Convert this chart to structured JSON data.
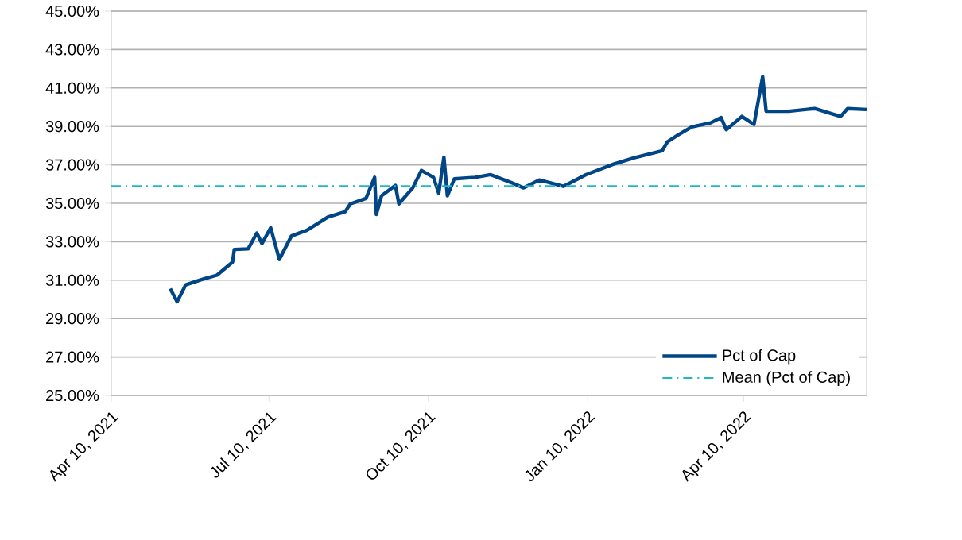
{
  "chart_data": {
    "type": "line",
    "xlim": [
      "2021-04-10",
      "2022-06-20"
    ],
    "ylim": [
      25,
      45
    ],
    "xticks": [
      {
        "value": "2021-04-10",
        "label": "Apr 10, 2021"
      },
      {
        "value": "2021-07-10",
        "label": "Jul 10, 2021"
      },
      {
        "value": "2021-10-10",
        "label": "Oct 10, 2021"
      },
      {
        "value": "2022-01-10",
        "label": "Jan 10, 2022"
      },
      {
        "value": "2022-04-10",
        "label": "Apr 10, 2022"
      }
    ],
    "yticks": [
      {
        "value": 25,
        "label": "25.00%"
      },
      {
        "value": 27,
        "label": "27.00%"
      },
      {
        "value": 29,
        "label": "29.00%"
      },
      {
        "value": 31,
        "label": "31.00%"
      },
      {
        "value": 33,
        "label": "33.00%"
      },
      {
        "value": 35,
        "label": "35.00%"
      },
      {
        "value": 37,
        "label": "37.00%"
      },
      {
        "value": 39,
        "label": "39.00%"
      },
      {
        "value": 41,
        "label": "41.00%"
      },
      {
        "value": 43,
        "label": "43.00%"
      },
      {
        "value": 45,
        "label": "45.00%"
      }
    ],
    "grid": "y",
    "legend": "bottom right",
    "marker": "none",
    "line_style": "solid",
    "x": [
      "2021-05-14",
      "2021-05-18",
      "2021-05-23",
      "2021-06-01",
      "2021-06-10",
      "2021-06-19",
      "2021-06-20",
      "2021-06-28",
      "2021-07-03",
      "2021-07-06",
      "2021-07-11",
      "2021-07-16",
      "2021-07-23",
      "2021-08-01",
      "2021-08-13",
      "2021-08-23",
      "2021-08-26",
      "2021-09-04",
      "2021-09-09",
      "2021-09-10",
      "2021-09-13",
      "2021-09-21",
      "2021-09-23",
      "2021-10-01",
      "2021-10-06",
      "2021-10-13",
      "2021-10-16",
      "2021-10-19",
      "2021-10-21",
      "2021-10-25",
      "2021-11-06",
      "2021-11-15",
      "2021-11-27",
      "2021-12-04",
      "2021-12-13",
      "2021-12-27",
      "2022-01-09",
      "2022-01-25",
      "2022-02-06",
      "2022-02-22",
      "2022-02-25",
      "2022-03-03",
      "2022-03-11",
      "2022-03-22",
      "2022-03-28",
      "2022-03-31",
      "2022-04-09",
      "2022-04-16",
      "2022-04-21",
      "2022-04-23",
      "2022-05-06",
      "2022-05-21",
      "2022-06-05",
      "2022-06-09",
      "2022-06-20"
    ],
    "series": [
      {
        "name": "Pct of Cap",
        "color": "#004586",
        "values": [
          30.56,
          29.88,
          30.76,
          31.03,
          31.26,
          31.94,
          32.6,
          32.63,
          33.45,
          32.9,
          33.73,
          32.08,
          33.3,
          33.6,
          34.28,
          34.56,
          34.97,
          35.25,
          36.35,
          34.42,
          35.39,
          35.93,
          34.97,
          35.8,
          36.71,
          36.35,
          35.52,
          37.4,
          35.39,
          36.27,
          36.35,
          36.49,
          36.07,
          35.8,
          36.21,
          35.88,
          36.49,
          37.04,
          37.37,
          37.73,
          38.2,
          38.55,
          38.97,
          39.19,
          39.46,
          38.83,
          39.52,
          39.1,
          41.59,
          39.79,
          39.79,
          39.93,
          39.52,
          39.93,
          39.88
        ]
      }
    ],
    "ref_lines": [
      {
        "axis": "y",
        "value": 35.9,
        "label": "Mean (Pct of Cap)",
        "color": "#1fb8c8",
        "line_style": "dashdotted"
      }
    ]
  }
}
